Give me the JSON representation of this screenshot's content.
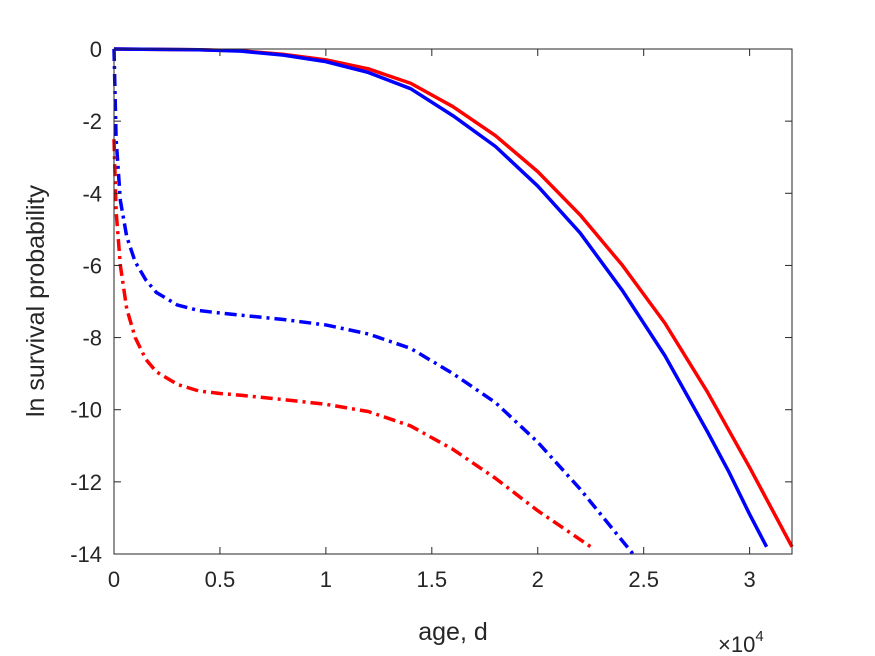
{
  "chart_data": {
    "type": "line",
    "title": "",
    "xlabel": "age, d",
    "ylabel": "ln survival probability",
    "x_exponent_label": {
      "base": "×10",
      "power": "4"
    },
    "xlim": [
      0,
      32000
    ],
    "ylim": [
      -14,
      0
    ],
    "xticks": [
      0,
      5000,
      10000,
      15000,
      20000,
      25000,
      30000
    ],
    "xtick_labels": [
      "0",
      "0.5",
      "1",
      "1.5",
      "2",
      "2.5",
      "3"
    ],
    "yticks": [
      0,
      -2,
      -4,
      -6,
      -8,
      -10,
      -12,
      -14
    ],
    "ytick_labels": [
      "0",
      "-2",
      "-4",
      "-6",
      "-8",
      "-10",
      "-12",
      "-14"
    ],
    "grid": false,
    "box": true,
    "series": [
      {
        "color": "#ff0000",
        "style": "solid",
        "x": [
          0,
          2000,
          4000,
          6000,
          8000,
          10000,
          12000,
          14000,
          16000,
          18000,
          20000,
          22000,
          24000,
          26000,
          28000,
          30000,
          32000
        ],
        "y": [
          0,
          -0.01,
          -0.02,
          -0.05,
          -0.15,
          -0.3,
          -0.55,
          -0.95,
          -1.6,
          -2.4,
          -3.4,
          -4.6,
          -6.0,
          -7.6,
          -9.5,
          -11.6,
          -13.8
        ]
      },
      {
        "color": "#0000ff",
        "style": "solid",
        "x": [
          0,
          2000,
          4000,
          6000,
          8000,
          10000,
          12000,
          14000,
          16000,
          18000,
          20000,
          22000,
          24000,
          26000,
          28000,
          29000,
          30000,
          30800
        ],
        "y": [
          0,
          -0.01,
          -0.02,
          -0.06,
          -0.17,
          -0.35,
          -0.65,
          -1.1,
          -1.85,
          -2.7,
          -3.8,
          -5.1,
          -6.7,
          -8.5,
          -10.6,
          -11.7,
          -12.9,
          -13.8
        ]
      },
      {
        "color": "#0000ff",
        "style": "dashdot",
        "x": [
          0,
          100,
          300,
          600,
          1000,
          1500,
          2000,
          3000,
          4000,
          5000,
          6000,
          8000,
          10000,
          12000,
          14000,
          16000,
          18000,
          20000,
          22000,
          24500
        ],
        "y": [
          0,
          -2.5,
          -4.2,
          -5.2,
          -5.9,
          -6.4,
          -6.75,
          -7.1,
          -7.25,
          -7.32,
          -7.38,
          -7.5,
          -7.65,
          -7.9,
          -8.3,
          -9.0,
          -9.8,
          -10.9,
          -12.2,
          -14.0
        ]
      },
      {
        "color": "#ff0000",
        "style": "dashdot",
        "x": [
          0,
          100,
          300,
          600,
          1000,
          1500,
          2000,
          3000,
          4000,
          5000,
          6000,
          8000,
          10000,
          12000,
          14000,
          16000,
          18000,
          20000,
          22500
        ],
        "y": [
          -2.5,
          -4.5,
          -6.0,
          -7.2,
          -8.0,
          -8.6,
          -8.95,
          -9.3,
          -9.48,
          -9.55,
          -9.6,
          -9.72,
          -9.85,
          -10.05,
          -10.45,
          -11.1,
          -11.9,
          -12.8,
          -13.8
        ]
      }
    ]
  }
}
